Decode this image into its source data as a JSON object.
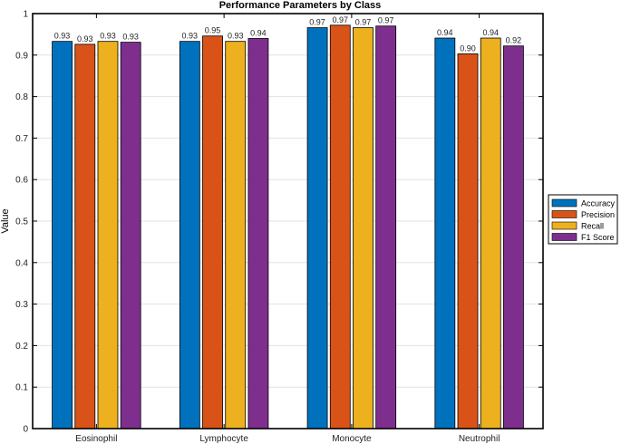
{
  "chart_data": {
    "type": "bar",
    "title": "Performance Parameters by Class",
    "xlabel": "",
    "ylabel": "Value",
    "categories": [
      "Eosinophil",
      "Lymphocyte",
      "Monocyte",
      "Neutrophil"
    ],
    "series": [
      {
        "name": "Accuracy",
        "color": "#0072BD",
        "values": [
          0.933,
          0.933,
          0.966,
          0.941
        ],
        "labels": [
          "0.93",
          "0.93",
          "0.97",
          "0.94"
        ]
      },
      {
        "name": "Precision",
        "color": "#D95319",
        "values": [
          0.926,
          0.946,
          0.972,
          0.903
        ],
        "labels": [
          "0.93",
          "0.95",
          "0.97",
          "0.90"
        ]
      },
      {
        "name": "Recall",
        "color": "#EDB120",
        "values": [
          0.933,
          0.933,
          0.966,
          0.941
        ],
        "labels": [
          "0.93",
          "0.93",
          "0.97",
          "0.94"
        ]
      },
      {
        "name": "F1 Score",
        "color": "#7E2F8E",
        "values": [
          0.931,
          0.94,
          0.97,
          0.922
        ],
        "labels": [
          "0.93",
          "0.94",
          "0.97",
          "0.92"
        ]
      }
    ],
    "ylim": [
      0,
      1
    ],
    "yticks": [
      0,
      0.1,
      0.2,
      0.3,
      0.4,
      0.5,
      0.6,
      0.7,
      0.8,
      0.9,
      1
    ],
    "ytick_labels": [
      "0",
      "0.1",
      "0.2",
      "0.3",
      "0.4",
      "0.5",
      "0.6",
      "0.7",
      "0.8",
      "0.9",
      "1"
    ],
    "grid": true,
    "legend_position": "right"
  }
}
